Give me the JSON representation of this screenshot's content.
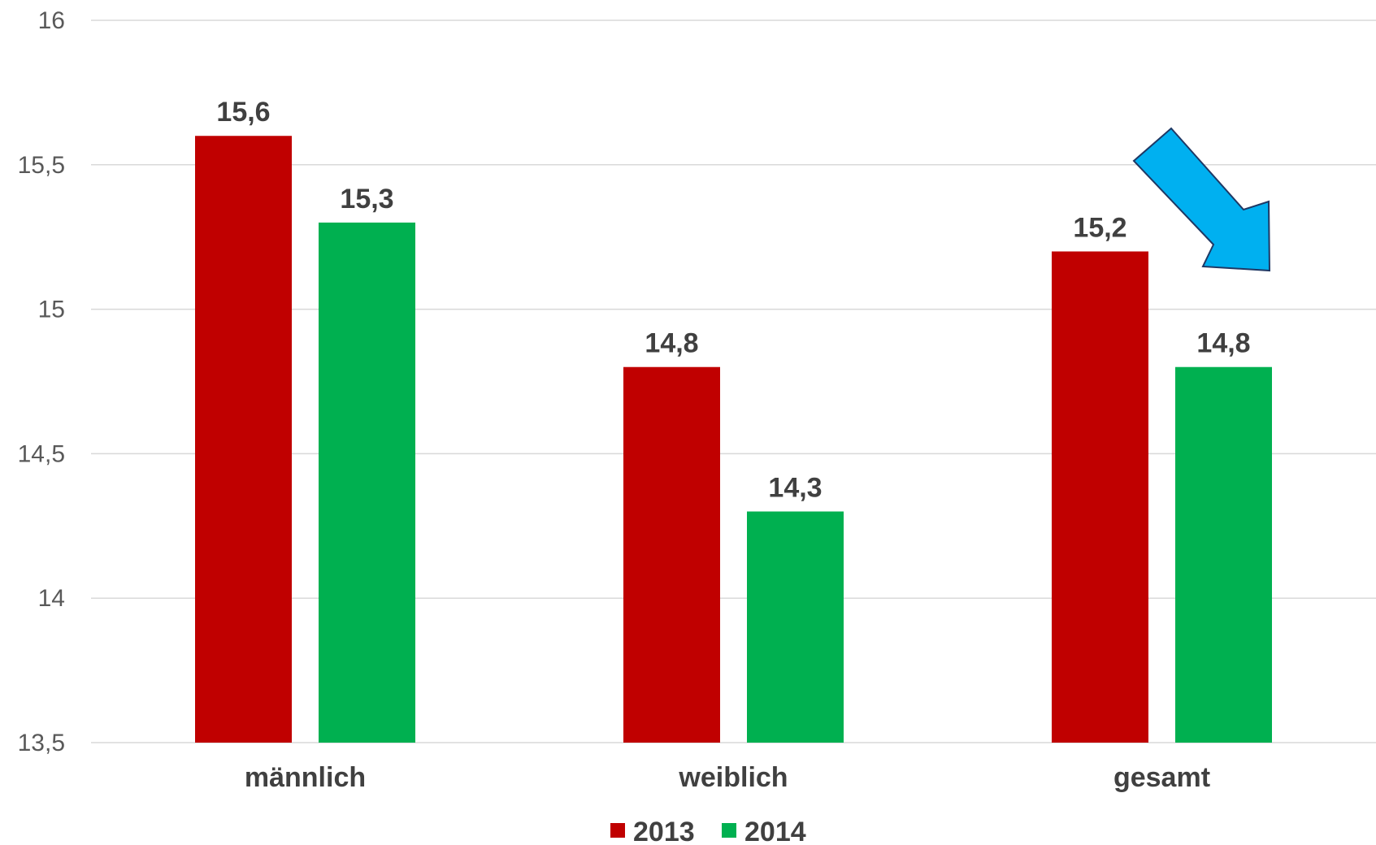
{
  "chart_data": {
    "type": "bar",
    "categories": [
      "männlich",
      "weiblich",
      "gesamt"
    ],
    "series": [
      {
        "name": "2013",
        "values": [
          15.6,
          14.8,
          15.2
        ],
        "labels": [
          "15,6",
          "14,8",
          "15,2"
        ],
        "color": "#C00000"
      },
      {
        "name": "2014",
        "values": [
          15.3,
          14.3,
          14.8
        ],
        "labels": [
          "15,3",
          "14,3",
          "14,8"
        ],
        "color": "#00B050"
      }
    ],
    "ylim": [
      13.5,
      16
    ],
    "yticks": [
      13.5,
      14,
      14.5,
      15,
      15.5,
      16
    ],
    "ytick_labels": [
      "13,5",
      "14",
      "14,5",
      "15",
      "15,5",
      "16"
    ],
    "grid": true,
    "legend_position": "bottom",
    "gridline_color": "#D9D9D9",
    "text_color": "#404040",
    "annotation": {
      "type": "arrow",
      "direction": "down-right",
      "color": "#00B0F0"
    }
  }
}
